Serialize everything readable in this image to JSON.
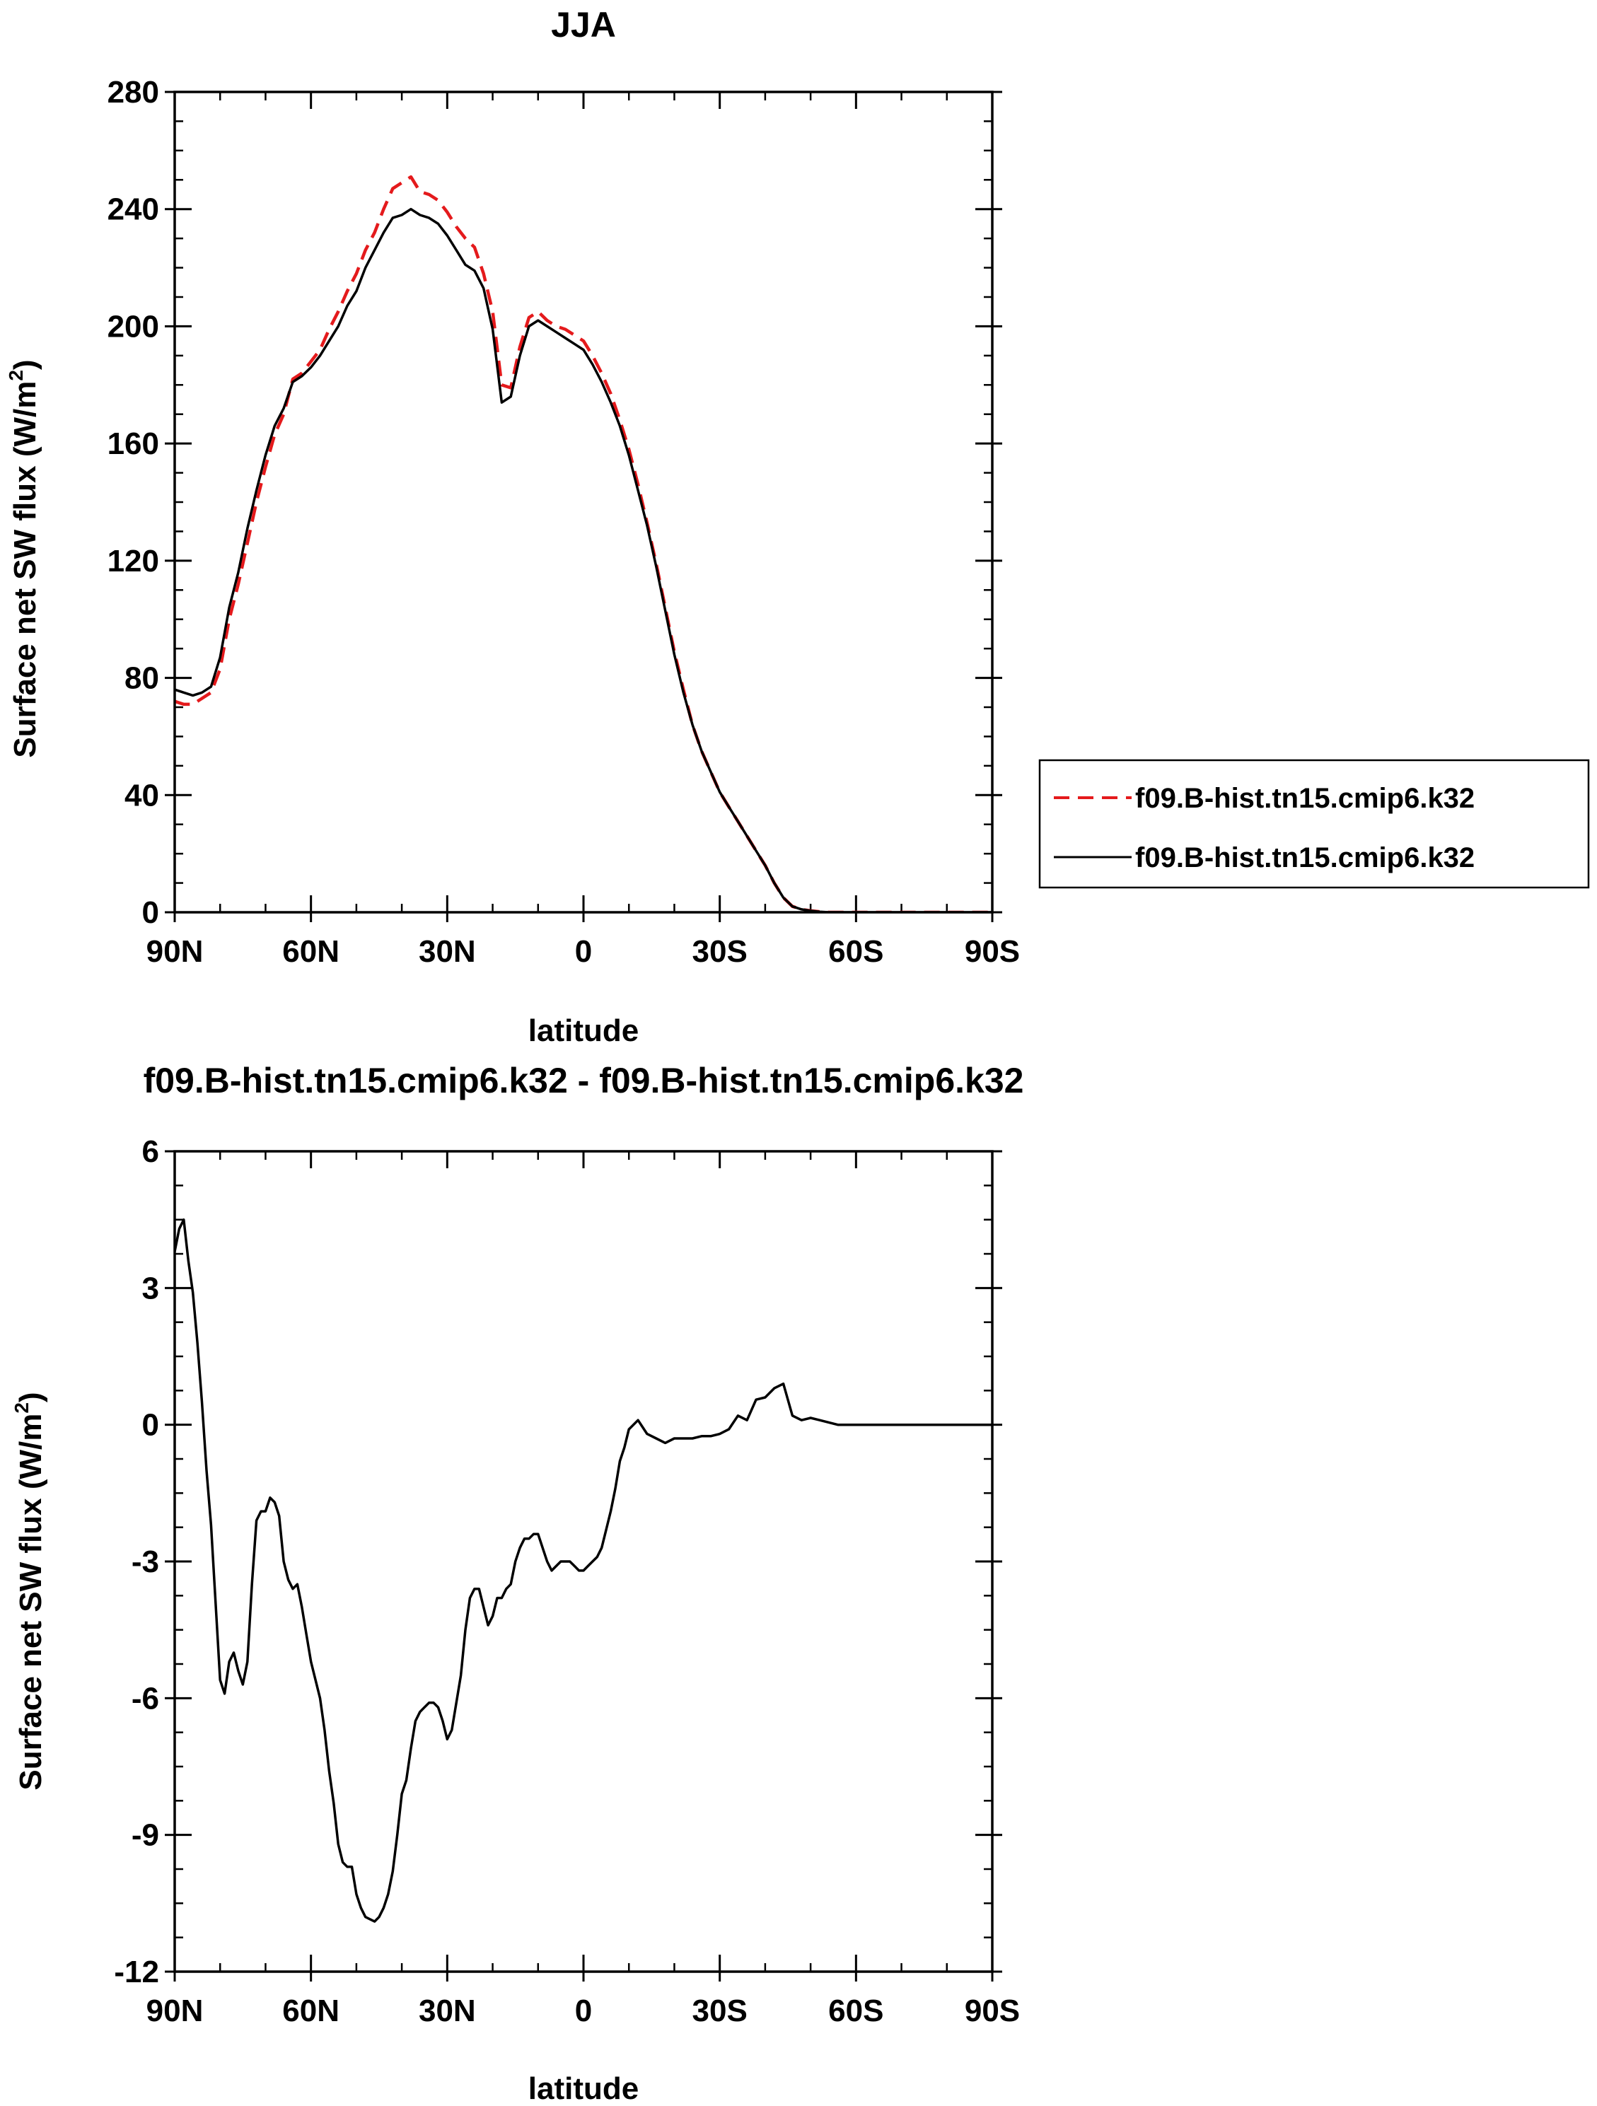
{
  "chart_data": [
    {
      "type": "line",
      "title": "JJA",
      "xlabel": "latitude",
      "ylabel": "Surface net SW flux (W/m",
      "ylabel_sup": "2",
      "ylabel_end": ")",
      "xlim": [
        90,
        -90
      ],
      "ylim": [
        0,
        280
      ],
      "x_ticks": [
        90,
        60,
        30,
        0,
        -30,
        -60,
        -90
      ],
      "x_tick_labels": [
        "90N",
        "60N",
        "30N",
        "0",
        "30S",
        "60S",
        "90S"
      ],
      "y_ticks": [
        0,
        40,
        80,
        120,
        160,
        200,
        240,
        280
      ],
      "y_tick_labels": [
        "0",
        "40",
        "80",
        "120",
        "160",
        "200",
        "240",
        "280"
      ],
      "grid": false,
      "legend": "right",
      "series": [
        {
          "name": "f09.B-hist.tn15.cmip6.k32",
          "color": "#e41a1c",
          "dash": "dashed",
          "x": [
            90,
            88,
            86,
            84,
            82,
            80,
            78,
            76,
            74,
            72,
            70,
            68,
            66,
            64,
            62,
            60,
            58,
            56,
            54,
            52,
            50,
            48,
            46,
            44,
            42,
            40,
            38,
            36,
            34,
            32,
            30,
            28,
            26,
            24,
            22,
            20,
            18,
            16,
            14,
            12,
            10,
            8,
            6,
            4,
            2,
            0,
            -2,
            -4,
            -6,
            -8,
            -10,
            -12,
            -14,
            -16,
            -18,
            -20,
            -22,
            -24,
            -26,
            -28,
            -30,
            -32,
            -34,
            -36,
            -38,
            -40,
            -42,
            -44,
            -46,
            -48,
            -50,
            -52,
            -54,
            -56,
            -58,
            -60,
            -62,
            -64,
            -66,
            -68,
            -70,
            -72,
            -74,
            -76,
            -78,
            -80,
            -85,
            -90
          ],
          "y": [
            72,
            71,
            71,
            73,
            75,
            83,
            100,
            112,
            126,
            140,
            152,
            163,
            170,
            182,
            184,
            188,
            192,
            199,
            205,
            212,
            218,
            226,
            232,
            240,
            247,
            249,
            251,
            246,
            245,
            243,
            239,
            234,
            230,
            227,
            218,
            205,
            180,
            179,
            193,
            203,
            205,
            202,
            200,
            199,
            197,
            195,
            190,
            184,
            177,
            168,
            158,
            146,
            133,
            119,
            104,
            89,
            76,
            64,
            55,
            48,
            41,
            36,
            31,
            26,
            21,
            16,
            10,
            5,
            2,
            1,
            0.5,
            0.2,
            0,
            0,
            0,
            0,
            0,
            0,
            0,
            0,
            0,
            0,
            0,
            0,
            0,
            0,
            0,
            0
          ]
        },
        {
          "name": "f09.B-hist.tn15.cmip6.k32",
          "color": "#000000",
          "dash": "solid",
          "x": [
            90,
            88,
            86,
            84,
            82,
            80,
            78,
            76,
            74,
            72,
            70,
            68,
            66,
            64,
            62,
            60,
            58,
            56,
            54,
            52,
            50,
            48,
            46,
            44,
            42,
            40,
            38,
            36,
            34,
            32,
            30,
            28,
            26,
            24,
            22,
            20,
            18,
            16,
            14,
            12,
            10,
            8,
            6,
            4,
            2,
            0,
            -2,
            -4,
            -6,
            -8,
            -10,
            -12,
            -14,
            -16,
            -18,
            -20,
            -22,
            -24,
            -26,
            -28,
            -30,
            -32,
            -34,
            -36,
            -38,
            -40,
            -42,
            -44,
            -46,
            -48,
            -50,
            -52,
            -54,
            -56,
            -58,
            -60,
            -62,
            -64,
            -66,
            -68,
            -70,
            -72,
            -74,
            -76,
            -78,
            -80,
            -85,
            -90
          ],
          "y": [
            76,
            75,
            74,
            75,
            77,
            87,
            104,
            116,
            131,
            144,
            156,
            166,
            172,
            181,
            183,
            186,
            190,
            195,
            200,
            207,
            212,
            220,
            226,
            232,
            237,
            238,
            240,
            238,
            237,
            235,
            231,
            226,
            221,
            219,
            213,
            199,
            174,
            176,
            190,
            200,
            202,
            200,
            198,
            196,
            194,
            192,
            187,
            181,
            174,
            166,
            156,
            144,
            132,
            118,
            103,
            88,
            75,
            64,
            55,
            48,
            41,
            36,
            31,
            26,
            21,
            16,
            10,
            5,
            2,
            1,
            0.5,
            0.2,
            0,
            0,
            0,
            0,
            0,
            0,
            0,
            0,
            0,
            0,
            0,
            0,
            0,
            0,
            0,
            0
          ]
        }
      ]
    },
    {
      "type": "line",
      "title": "f09.B-hist.tn15.cmip6.k32 - f09.B-hist.tn15.cmip6.k32",
      "xlabel": "latitude",
      "ylabel": "Surface net SW flux (W/m",
      "ylabel_sup": "2",
      "ylabel_end": ")",
      "xlim": [
        90,
        -90
      ],
      "ylim": [
        -12,
        6
      ],
      "x_ticks": [
        90,
        60,
        30,
        0,
        -30,
        -60,
        -90
      ],
      "x_tick_labels": [
        "90N",
        "60N",
        "30N",
        "0",
        "30S",
        "60S",
        "90S"
      ],
      "y_ticks": [
        -12,
        -9,
        -6,
        -3,
        0,
        3,
        6
      ],
      "y_tick_labels": [
        "-12",
        "-9",
        "-6",
        "-3",
        "0",
        "3",
        "6"
      ],
      "grid": false,
      "series": [
        {
          "color": "#000000",
          "dash": "solid",
          "x": [
            90,
            89,
            88,
            87,
            86,
            85,
            84,
            83,
            82,
            81,
            80,
            79,
            78,
            77,
            76,
            75,
            74,
            73,
            72,
            71,
            70,
            69,
            68,
            67,
            66,
            65,
            64,
            63,
            62,
            61,
            60,
            59,
            58,
            57,
            56,
            55,
            54,
            53,
            52,
            51,
            50,
            49,
            48,
            47,
            46,
            45,
            44,
            43,
            42,
            41,
            40,
            39,
            38,
            37,
            36,
            35,
            34,
            33,
            32,
            31,
            30,
            29,
            28,
            27,
            26,
            25,
            24,
            23,
            22,
            21,
            20,
            19,
            18,
            17,
            16,
            15,
            14,
            13,
            12,
            11,
            10,
            9,
            8,
            7,
            6,
            5,
            4,
            3,
            2,
            1,
            0,
            -1,
            -2,
            -3,
            -4,
            -5,
            -6,
            -7,
            -8,
            -9,
            -10,
            -12,
            -14,
            -16,
            -18,
            -20,
            -22,
            -24,
            -26,
            -28,
            -30,
            -32,
            -34,
            -36,
            -38,
            -40,
            -42,
            -44,
            -46,
            -48,
            -50,
            -52,
            -54,
            -56,
            -58,
            -60,
            -62,
            -63,
            -64,
            -65,
            -66,
            -68,
            -70,
            -72,
            -75,
            -80,
            -85,
            -90
          ],
          "y": [
            3.8,
            4.3,
            4.5,
            3.6,
            2.9,
            1.8,
            0.5,
            -1.0,
            -2.2,
            -3.9,
            -5.6,
            -5.9,
            -5.2,
            -5.0,
            -5.4,
            -5.7,
            -5.2,
            -3.5,
            -2.1,
            -1.9,
            -1.9,
            -1.6,
            -1.7,
            -2.0,
            -3.0,
            -3.4,
            -3.6,
            -3.5,
            -4.0,
            -4.6,
            -5.2,
            -5.6,
            -6.0,
            -6.7,
            -7.6,
            -8.3,
            -9.2,
            -9.6,
            -9.7,
            -9.7,
            -10.3,
            -10.6,
            -10.8,
            -10.85,
            -10.9,
            -10.8,
            -10.6,
            -10.3,
            -9.8,
            -9.0,
            -8.1,
            -7.8,
            -7.1,
            -6.5,
            -6.3,
            -6.2,
            -6.1,
            -6.1,
            -6.2,
            -6.5,
            -6.9,
            -6.7,
            -6.1,
            -5.5,
            -4.5,
            -3.8,
            -3.6,
            -3.6,
            -4.0,
            -4.4,
            -4.2,
            -3.8,
            -3.8,
            -3.6,
            -3.5,
            -3.0,
            -2.7,
            -2.5,
            -2.5,
            -2.4,
            -2.4,
            -2.7,
            -3.0,
            -3.2,
            -3.1,
            -3.0,
            -3.0,
            -3.0,
            -3.1,
            -3.2,
            -3.2,
            -3.1,
            -3.0,
            -2.9,
            -2.7,
            -2.3,
            -1.9,
            -1.4,
            -0.8,
            -0.5,
            -0.1,
            0.1,
            -0.2,
            -0.3,
            -0.4,
            -0.3,
            -0.3,
            -0.3,
            -0.25,
            -0.25,
            -0.2,
            -0.1,
            0.2,
            0.1,
            0.55,
            0.6,
            0.8,
            0.9,
            0.2,
            0.1,
            0.15,
            0.1,
            0.05,
            0,
            0,
            0,
            0,
            0,
            0,
            0,
            0,
            0,
            0,
            0,
            0,
            0,
            0,
            0
          ],
          "x_trim": true
        }
      ]
    }
  ]
}
